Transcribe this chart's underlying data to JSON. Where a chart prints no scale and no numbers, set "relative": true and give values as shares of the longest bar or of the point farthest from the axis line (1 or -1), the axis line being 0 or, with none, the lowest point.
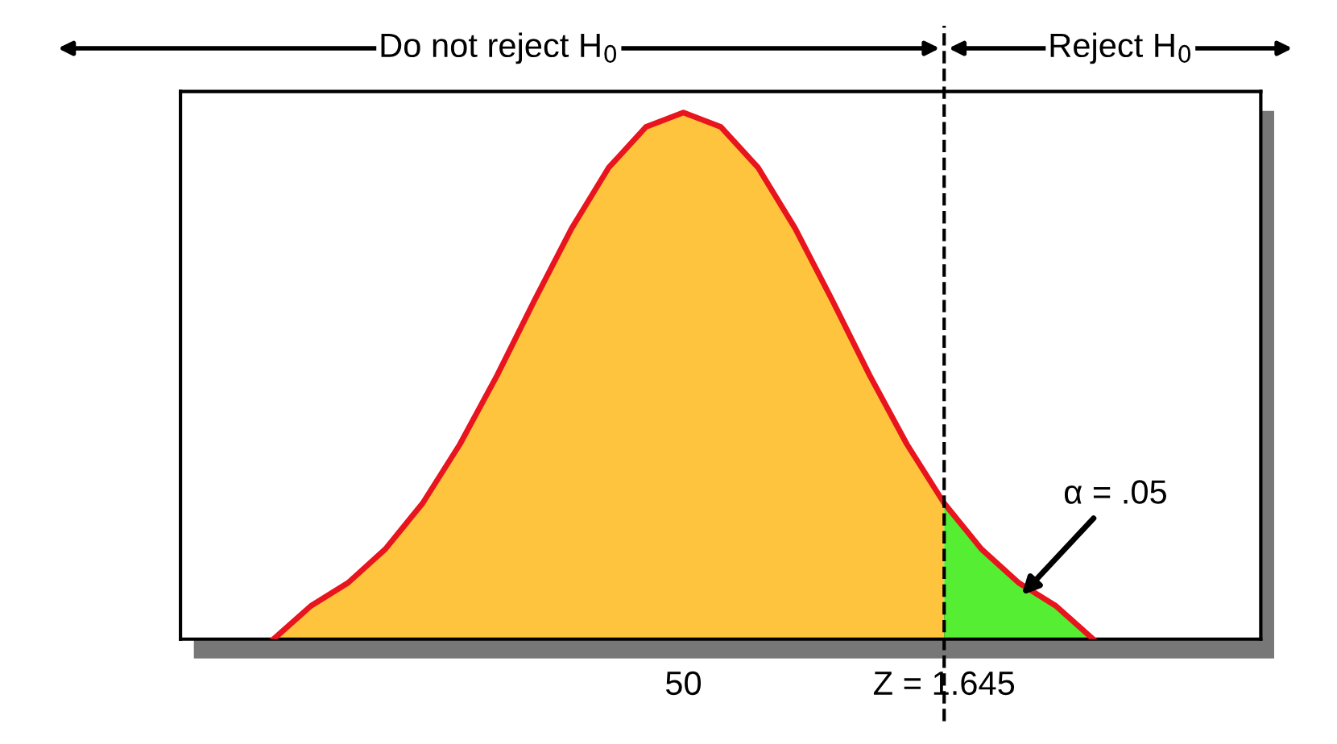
{
  "chart_data": {
    "type": "area",
    "relative": true,
    "categories": [
      null,
      null,
      null,
      null,
      null,
      null,
      null,
      null,
      null,
      null,
      null,
      null,
      null,
      "50",
      null,
      null,
      null,
      null,
      null,
      null,
      "Z = 1.645",
      null,
      null,
      null,
      null,
      null,
      null,
      null,
      null
    ],
    "series": [
      {
        "color": "#ffc43d",
        "values": [
          null,
          null,
          0,
          0.063,
          0.107,
          0.171,
          0.258,
          0.37,
          0.501,
          0.643,
          0.78,
          0.896,
          0.973,
          1,
          0.973,
          0.896,
          0.78,
          0.643,
          0.501,
          0.37,
          0.258,
          null,
          null,
          null,
          null,
          null,
          null,
          null,
          null
        ]
      },
      {
        "color": "#55ee33",
        "values": [
          null,
          null,
          null,
          null,
          null,
          null,
          null,
          null,
          null,
          null,
          null,
          null,
          null,
          null,
          null,
          null,
          null,
          null,
          null,
          null,
          0.258,
          0.171,
          0.107,
          0.063,
          0,
          null,
          null,
          null,
          null
        ]
      },
      {
        "type": "line",
        "color": "#e8141e",
        "values": [
          null,
          null,
          0,
          0.063,
          0.107,
          0.171,
          0.258,
          0.37,
          0.501,
          0.643,
          0.78,
          0.896,
          0.973,
          1,
          0.973,
          0.896,
          0.78,
          0.643,
          0.501,
          0.37,
          0.258,
          0.171,
          0.107,
          0.063,
          0,
          null,
          null,
          null,
          null
        ]
      }
    ],
    "ref_lines": [
      {
        "axis": "x",
        "value": "Z = 1.645",
        "color": "#000000",
        "line_style": "dashed"
      }
    ],
    "annotations": [
      "Do not reject H$_{0}$",
      "Reject H$_{0}$",
      "α = .05"
    ]
  }
}
